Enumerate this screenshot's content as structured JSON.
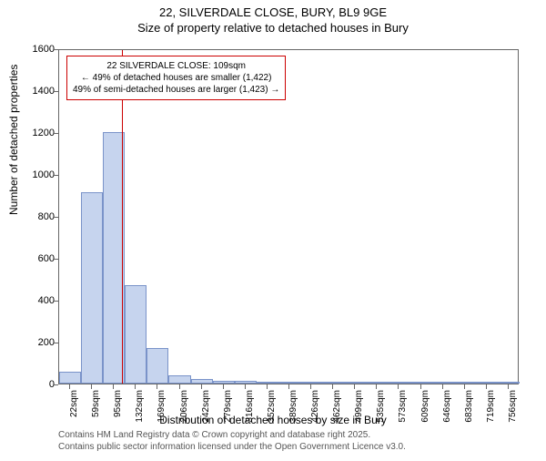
{
  "title_main": "22, SILVERDALE CLOSE, BURY, BL9 9GE",
  "title_sub": "Size of property relative to detached houses in Bury",
  "ylabel": "Number of detached properties",
  "xlabel": "Distribution of detached houses by size in Bury",
  "ylim": [
    0,
    1600
  ],
  "yticks": [
    0,
    200,
    400,
    600,
    800,
    1000,
    1200,
    1400,
    1600
  ],
  "xtick_labels": [
    "22sqm",
    "59sqm",
    "95sqm",
    "132sqm",
    "169sqm",
    "206sqm",
    "242sqm",
    "279sqm",
    "316sqm",
    "352sqm",
    "389sqm",
    "426sqm",
    "462sqm",
    "499sqm",
    "535sqm",
    "573sqm",
    "609sqm",
    "646sqm",
    "683sqm",
    "719sqm",
    "756sqm"
  ],
  "bars": [
    {
      "x_index": 0,
      "value": 55
    },
    {
      "x_index": 1,
      "value": 915
    },
    {
      "x_index": 2,
      "value": 1198
    },
    {
      "x_index": 3,
      "value": 470
    },
    {
      "x_index": 4,
      "value": 170
    },
    {
      "x_index": 5,
      "value": 38
    },
    {
      "x_index": 6,
      "value": 22
    },
    {
      "x_index": 7,
      "value": 15
    },
    {
      "x_index": 8,
      "value": 12
    },
    {
      "x_index": 9,
      "value": 8
    },
    {
      "x_index": 10,
      "value": 5
    },
    {
      "x_index": 11,
      "value": 4
    },
    {
      "x_index": 12,
      "value": 3
    },
    {
      "x_index": 13,
      "value": 2
    },
    {
      "x_index": 14,
      "value": 2
    },
    {
      "x_index": 15,
      "value": 2
    },
    {
      "x_index": 16,
      "value": 2
    },
    {
      "x_index": 17,
      "value": 1
    },
    {
      "x_index": 18,
      "value": 1
    },
    {
      "x_index": 19,
      "value": 1
    },
    {
      "x_index": 20,
      "value": 1
    }
  ],
  "bar_fill": "#c6d4ee",
  "bar_stroke": "#7a93c9",
  "marker_x_index": 2.38,
  "marker_color": "#cc0000",
  "annot_border": "#cc0000",
  "annot_line1": "22 SILVERDALE CLOSE: 109sqm",
  "annot_line2": "← 49% of detached houses are smaller (1,422)",
  "annot_line3": "49% of semi-detached houses are larger (1,423) →",
  "credit_line1": "Contains HM Land Registry data © Crown copyright and database right 2025.",
  "credit_line2": "Contains public sector information licensed under the Open Government Licence v3.0.",
  "credit_color": "#555555",
  "title_fontsize": 13,
  "label_fontsize": 12,
  "tick_fontsize": 11
}
